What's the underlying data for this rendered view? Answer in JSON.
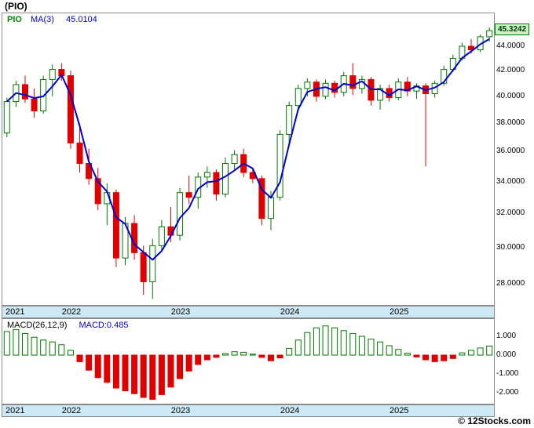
{
  "header": {
    "symbol_title": "(PIO)",
    "legend": {
      "symbol": "PIO",
      "ma_label": "MA(3)",
      "ma_value": "45.0104"
    }
  },
  "price_tag": "45.3242",
  "macd_header": {
    "label": "MACD(26,12,9)",
    "value": "MACD:0.485"
  },
  "watermark": "© 12Stocks.com",
  "colors": {
    "up": "#007a00",
    "down": "#e10000",
    "ma_line": "#0000cc",
    "legend_symbol": "#008800",
    "legend_blue": "#0000cc",
    "band_bg": "#cde9f5",
    "tag_bg": "#c8f5c8",
    "tag_border": "#007a00",
    "panel_border": "#8a8a8a"
  },
  "chart_data": [
    {
      "type": "candlestick",
      "title": "(PIO)",
      "yscale": "log",
      "ma_period": 3,
      "ma_last_value": 45.0104,
      "last_price": 45.3242,
      "ylabels": [
        "44.0000",
        "42.0000",
        "40.0000",
        "38.0000",
        "36.0000",
        "34.0000",
        "32.0000",
        "30.0000",
        "28.0000"
      ],
      "year_ticks": [
        {
          "label": "2021",
          "index": 0
        },
        {
          "label": "2022",
          "index": 7
        },
        {
          "label": "2023",
          "index": 19
        },
        {
          "label": "2024",
          "index": 31
        },
        {
          "label": "2025",
          "index": 43
        }
      ],
      "months": [
        "2021-06",
        "2021-07",
        "2021-08",
        "2021-09",
        "2021-10",
        "2021-11",
        "2021-12",
        "2022-01",
        "2022-02",
        "2022-03",
        "2022-04",
        "2022-05",
        "2022-06",
        "2022-07",
        "2022-08",
        "2022-09",
        "2022-10",
        "2022-11",
        "2022-12",
        "2023-01",
        "2023-02",
        "2023-03",
        "2023-04",
        "2023-05",
        "2023-06",
        "2023-07",
        "2023-08",
        "2023-09",
        "2023-10",
        "2023-11",
        "2023-12",
        "2024-01",
        "2024-02",
        "2024-03",
        "2024-04",
        "2024-05",
        "2024-06",
        "2024-07",
        "2024-08",
        "2024-09",
        "2024-10",
        "2024-11",
        "2024-12",
        "2025-01",
        "2025-02",
        "2025-03",
        "2025-04",
        "2025-05",
        "2025-06",
        "2025-07",
        "2025-08",
        "2025-09",
        "2025-10",
        "2025-11"
      ],
      "ohlc": [
        [
          37.3,
          39.9,
          37.0,
          39.6
        ],
        [
          39.6,
          41.2,
          39.2,
          40.9
        ],
        [
          40.9,
          41.6,
          39.5,
          39.8
        ],
        [
          39.8,
          40.6,
          38.4,
          38.9
        ],
        [
          38.9,
          41.6,
          38.7,
          41.3
        ],
        [
          41.3,
          42.5,
          40.0,
          42.1
        ],
        [
          42.1,
          42.6,
          41.2,
          41.6
        ],
        [
          41.6,
          42.0,
          36.2,
          36.6
        ],
        [
          36.6,
          38.0,
          34.6,
          35.2
        ],
        [
          35.2,
          36.2,
          33.8,
          34.2
        ],
        [
          34.2,
          34.9,
          32.2,
          32.6
        ],
        [
          32.6,
          33.9,
          31.3,
          33.3
        ],
        [
          33.3,
          33.5,
          28.9,
          29.4
        ],
        [
          29.4,
          31.8,
          29.0,
          31.4
        ],
        [
          31.4,
          31.9,
          29.3,
          29.7
        ],
        [
          29.7,
          30.1,
          27.4,
          28.1
        ],
        [
          28.1,
          30.5,
          27.2,
          30.1
        ],
        [
          30.1,
          31.6,
          29.8,
          31.2
        ],
        [
          31.2,
          32.4,
          30.3,
          30.7
        ],
        [
          30.7,
          33.6,
          30.4,
          33.3
        ],
        [
          33.3,
          34.4,
          32.6,
          33.0
        ],
        [
          33.0,
          34.6,
          32.3,
          34.3
        ],
        [
          34.3,
          35.0,
          33.6,
          34.6
        ],
        [
          34.6,
          34.8,
          32.8,
          33.2
        ],
        [
          33.2,
          35.6,
          33.0,
          35.2
        ],
        [
          35.2,
          36.1,
          34.8,
          35.8
        ],
        [
          35.8,
          36.2,
          34.3,
          34.6
        ],
        [
          34.6,
          34.9,
          33.9,
          34.2
        ],
        [
          34.2,
          34.4,
          31.3,
          31.7
        ],
        [
          31.7,
          33.4,
          31.0,
          33.0
        ],
        [
          33.0,
          37.5,
          32.8,
          37.2
        ],
        [
          37.2,
          39.6,
          36.6,
          39.3
        ],
        [
          39.3,
          40.9,
          38.9,
          40.6
        ],
        [
          40.6,
          41.4,
          40.0,
          41.1
        ],
        [
          41.1,
          41.3,
          39.6,
          40.0
        ],
        [
          40.0,
          41.3,
          39.8,
          41.0
        ],
        [
          41.0,
          41.2,
          39.9,
          40.3
        ],
        [
          40.3,
          41.9,
          40.0,
          41.6
        ],
        [
          41.6,
          42.6,
          40.1,
          40.6
        ],
        [
          40.6,
          41.6,
          40.2,
          41.3
        ],
        [
          41.3,
          41.5,
          39.3,
          39.7
        ],
        [
          39.7,
          40.9,
          39.0,
          40.6
        ],
        [
          40.6,
          40.9,
          39.6,
          39.9
        ],
        [
          39.9,
          41.4,
          39.7,
          41.1
        ],
        [
          41.1,
          41.5,
          40.0,
          40.4
        ],
        [
          40.4,
          41.0,
          39.8,
          40.8
        ],
        [
          40.8,
          41.0,
          35.0,
          40.2
        ],
        [
          40.2,
          41.2,
          39.9,
          41.0
        ],
        [
          41.0,
          42.4,
          40.8,
          42.1
        ],
        [
          42.1,
          43.3,
          41.9,
          43.0
        ],
        [
          43.0,
          44.3,
          42.8,
          44.0
        ],
        [
          44.0,
          44.6,
          43.4,
          43.7
        ],
        [
          43.7,
          45.0,
          43.5,
          44.8
        ],
        [
          44.8,
          45.6,
          44.4,
          45.3242
        ]
      ]
    },
    {
      "type": "bar",
      "title": "MACD(26,12,9)",
      "last_value": 0.485,
      "ylabels": [
        "1.000",
        "0.000",
        "-1.000",
        "-2.000"
      ],
      "ylim": [
        -2.6,
        1.9
      ],
      "values": [
        1.25,
        1.35,
        1.15,
        0.95,
        0.8,
        0.7,
        0.55,
        0.25,
        -0.35,
        -0.8,
        -1.2,
        -1.45,
        -1.75,
        -1.9,
        -2.05,
        -2.25,
        -2.35,
        -2.1,
        -1.7,
        -1.25,
        -0.85,
        -0.5,
        -0.25,
        -0.12,
        0.08,
        0.18,
        0.15,
        0.05,
        -0.12,
        -0.3,
        -0.15,
        0.35,
        0.8,
        1.2,
        1.45,
        1.55,
        1.45,
        1.3,
        1.15,
        1.0,
        0.85,
        0.7,
        0.5,
        0.3,
        0.1,
        -0.1,
        -0.25,
        -0.35,
        -0.3,
        -0.18,
        0.12,
        0.25,
        0.38,
        0.485
      ]
    }
  ]
}
